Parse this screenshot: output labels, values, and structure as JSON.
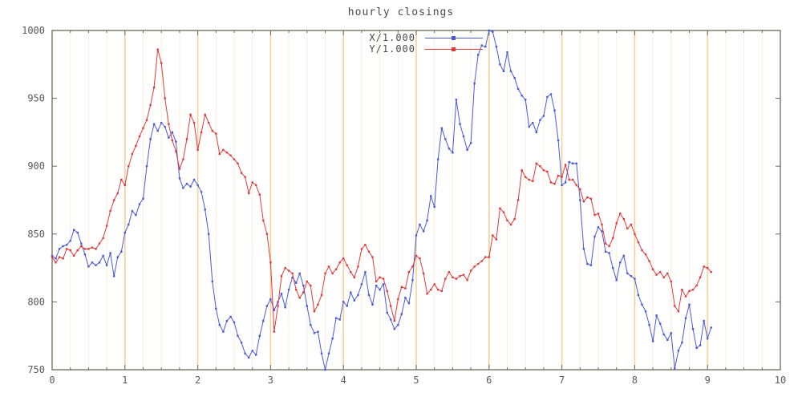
{
  "title": "hourly closings",
  "colors": {
    "background": "#ffffff",
    "border": "#6a6a58",
    "tick_text": "#5a5a5a",
    "title_text": "#4a4a4a",
    "grid_major": "#f7d098",
    "grid_minor": "#fbeedd",
    "series_x": "#4a5ad8",
    "series_y": "#e03b3b"
  },
  "chart_data": {
    "type": "line",
    "title": "hourly closings",
    "xlabel": "",
    "ylabel": "",
    "xlim": [
      0,
      10
    ],
    "ylim": [
      750,
      1000
    ],
    "x_tick_labels": [
      "0",
      "1",
      "2",
      "3",
      "4",
      "5",
      "6",
      "7",
      "8",
      "9",
      "10"
    ],
    "y_tick_labels": [
      "750",
      "800",
      "850",
      "900",
      "950",
      "1000"
    ],
    "x_ticks": [
      0,
      1,
      2,
      3,
      4,
      5,
      6,
      7,
      8,
      9,
      10
    ],
    "y_ticks": [
      750,
      800,
      850,
      900,
      950,
      1000
    ],
    "x_minor_step": 0.25,
    "grid": "vertical-only",
    "legend_position": "top-center",
    "marker": "square",
    "x_start": 0,
    "x_step": 0.05,
    "series": [
      {
        "name": "X/1.000",
        "color": "#4a5ad8",
        "values": [
          834,
          832,
          839,
          841,
          842,
          845,
          853,
          851,
          843,
          835,
          826,
          829,
          827,
          829,
          834,
          827,
          836,
          819,
          833,
          837,
          851,
          857,
          867,
          864,
          872,
          876,
          900,
          920,
          931,
          926,
          932,
          929,
          921,
          925,
          918,
          891,
          884,
          887,
          885,
          890,
          886,
          881,
          868,
          850,
          815,
          795,
          783,
          778,
          786,
          789,
          785,
          775,
          770,
          762,
          759,
          764,
          761,
          775,
          786,
          797,
          802,
          794,
          800,
          806,
          796,
          809,
          818,
          814,
          821,
          812,
          797,
          783,
          777,
          778,
          762,
          750,
          762,
          773,
          788,
          787,
          800,
          797,
          807,
          801,
          805,
          813,
          822,
          805,
          798,
          812,
          809,
          813,
          792,
          787,
          780,
          783,
          791,
          803,
          799,
          816,
          849,
          857,
          852,
          860,
          878,
          870,
          905,
          928,
          920,
          913,
          910,
          949,
          931,
          922,
          912,
          917,
          961,
          982,
          989,
          988,
          1000,
          999,
          988,
          975,
          970,
          984,
          970,
          965,
          957,
          952,
          949,
          929,
          932,
          925,
          934,
          937,
          951,
          953,
          941,
          919,
          886,
          888,
          903,
          902,
          902,
          875,
          839,
          828,
          827,
          848,
          855,
          852,
          837,
          836,
          825,
          816,
          829,
          834,
          821,
          819,
          817,
          805,
          798,
          793,
          783,
          771,
          790,
          784,
          776,
          772,
          777,
          751,
          764,
          770,
          788,
          798,
          780,
          766,
          768,
          786,
          773,
          781
        ]
      },
      {
        "name": "Y/1.000",
        "color": "#e03b3b",
        "values": [
          833,
          829,
          833,
          832,
          839,
          838,
          834,
          838,
          841,
          839,
          839,
          840,
          839,
          843,
          847,
          856,
          867,
          875,
          880,
          890,
          886,
          900,
          909,
          915,
          922,
          928,
          934,
          945,
          958,
          986,
          976,
          950,
          931,
          919,
          911,
          898,
          905,
          920,
          938,
          932,
          912,
          925,
          938,
          932,
          926,
          924,
          909,
          912,
          910,
          908,
          905,
          902,
          895,
          892,
          880,
          888,
          886,
          879,
          860,
          850,
          829,
          778,
          797,
          819,
          825,
          823,
          821,
          809,
          803,
          807,
          815,
          812,
          793,
          798,
          805,
          821,
          826,
          821,
          824,
          829,
          832,
          827,
          822,
          818,
          826,
          839,
          842,
          837,
          833,
          815,
          818,
          817,
          808,
          797,
          786,
          802,
          811,
          810,
          822,
          826,
          834,
          832,
          821,
          806,
          809,
          813,
          809,
          808,
          817,
          822,
          818,
          817,
          819,
          820,
          816,
          823,
          826,
          828,
          830,
          833,
          833,
          849,
          846,
          869,
          866,
          860,
          857,
          861,
          875,
          897,
          892,
          890,
          889,
          902,
          900,
          897,
          896,
          888,
          887,
          893,
          892,
          901,
          890,
          890,
          886,
          883,
          874,
          877,
          876,
          864,
          865,
          857,
          843,
          841,
          847,
          858,
          865,
          861,
          854,
          857,
          850,
          844,
          838,
          835,
          830,
          824,
          820,
          822,
          818,
          821,
          815,
          797,
          793,
          809,
          804,
          808,
          809,
          812,
          818,
          826,
          825,
          822
        ]
      }
    ]
  },
  "legend": {
    "items": [
      {
        "label": "X/1.000"
      },
      {
        "label": "Y/1.000"
      }
    ]
  }
}
